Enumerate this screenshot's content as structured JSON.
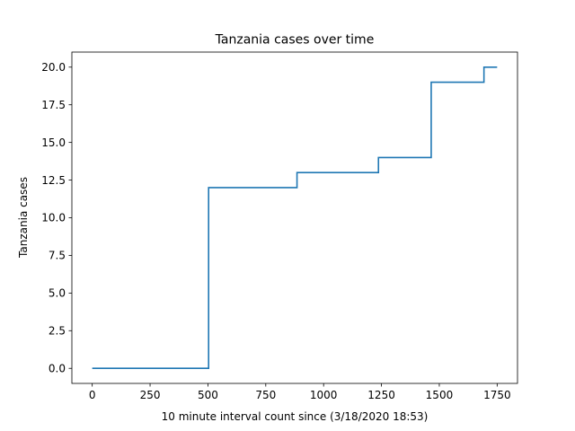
{
  "chart_data": {
    "type": "line",
    "title": "Tanzania cases over time",
    "xlabel": "10 minute interval count since (3/18/2020 18:53)",
    "ylabel": "Tanzania cases",
    "xlim": [
      -88,
      1838
    ],
    "ylim": [
      -1,
      21
    ],
    "xticks": [
      0,
      250,
      500,
      750,
      1000,
      1250,
      1500,
      1750
    ],
    "xtick_labels": [
      "0",
      "250",
      "500",
      "750",
      "1000",
      "1250",
      "1500",
      "1750"
    ],
    "yticks": [
      0,
      2.5,
      5,
      7.5,
      10,
      12.5,
      15,
      17.5,
      20
    ],
    "ytick_labels": [
      "0.0",
      "2.5",
      "5.0",
      "7.5",
      "10.0",
      "12.5",
      "15.0",
      "17.5",
      "20.0"
    ],
    "grid": false,
    "series": [
      {
        "color": "#1f77b4",
        "step": true,
        "x": [
          0,
          503,
          885,
          1237,
          1465,
          1693,
          1750
        ],
        "y": [
          0,
          12,
          13,
          14,
          19,
          20,
          20
        ]
      }
    ]
  }
}
